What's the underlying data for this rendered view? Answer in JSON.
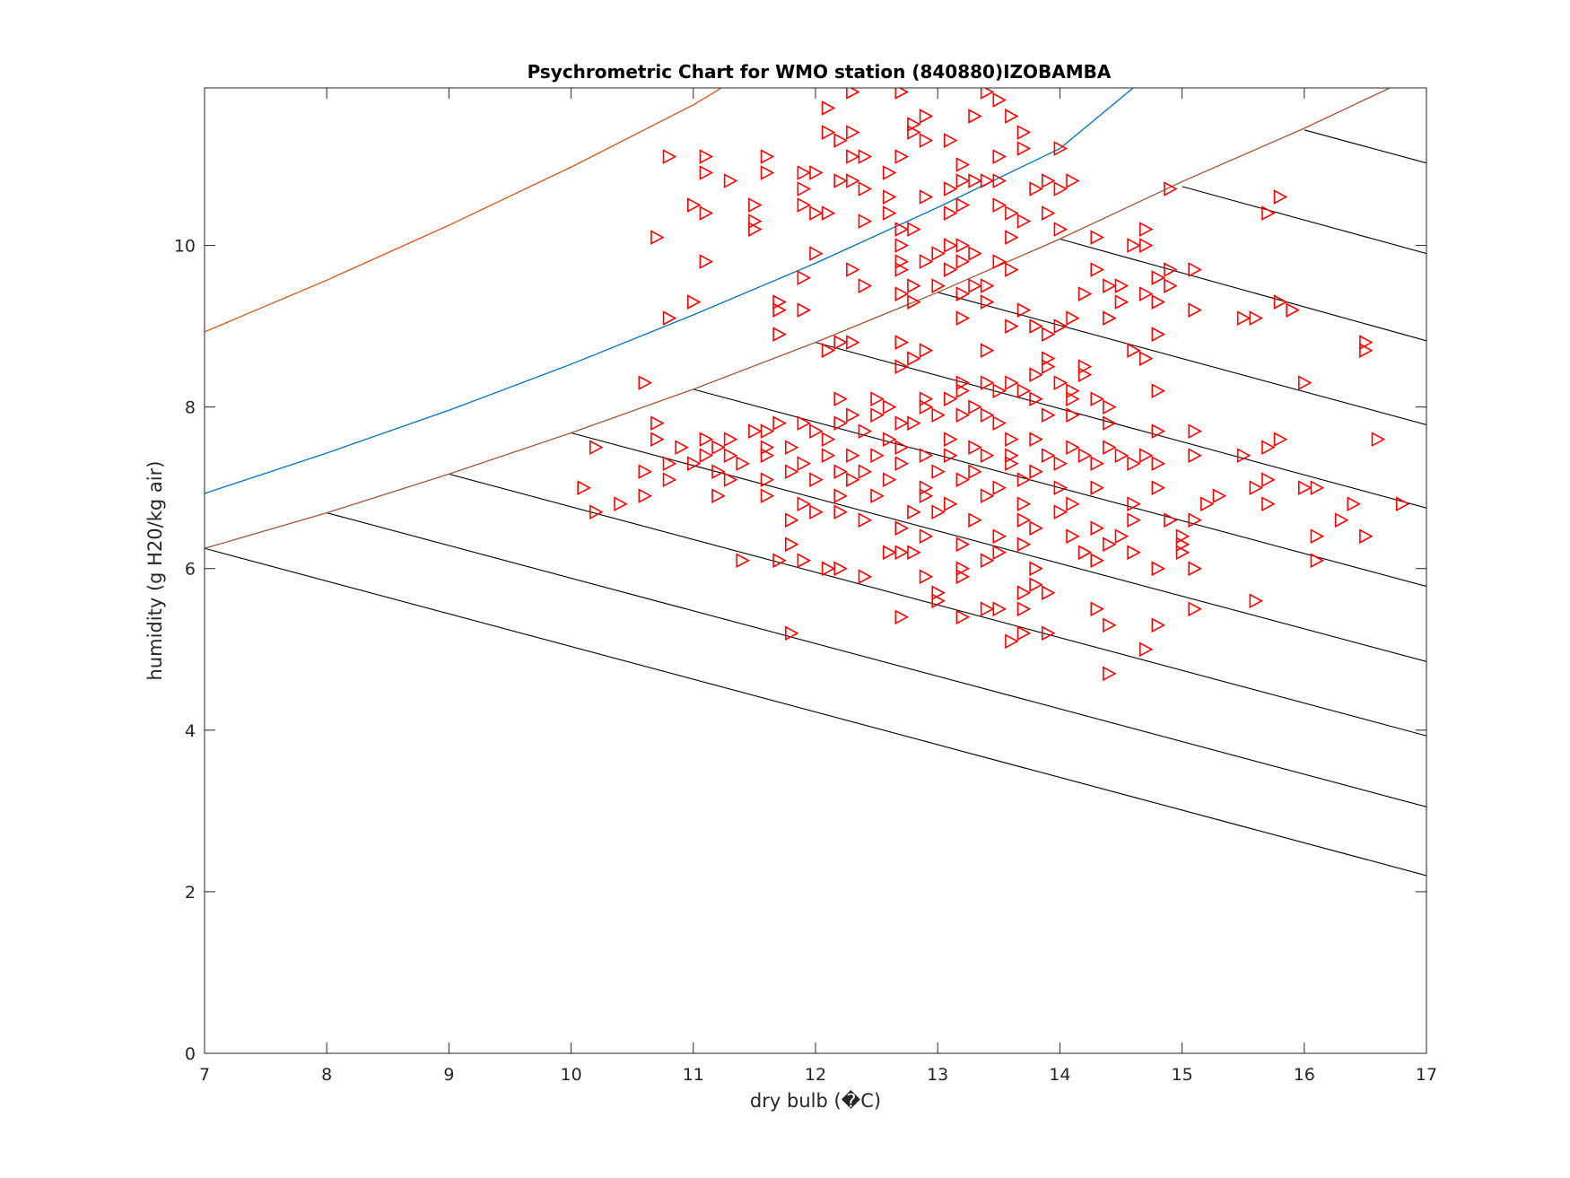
{
  "chart_data": {
    "type": "scatter",
    "title": "Psychrometric Chart for WMO station (840880)IZOBAMBA",
    "xlabel": "dry bulb (�C)",
    "ylabel": "humidity (g H20/kg air)",
    "xlim": [
      7,
      17
    ],
    "ylim": [
      0,
      11.95
    ],
    "x_ticks": [
      7,
      8,
      9,
      10,
      11,
      12,
      13,
      14,
      15,
      16,
      17
    ],
    "y_ticks": [
      0,
      2,
      4,
      6,
      8,
      10
    ],
    "grid": false,
    "legend": "none",
    "marker": "triangle-right",
    "marker_color": "#ff0000",
    "curves": [
      {
        "color": "#d95319",
        "points": [
          [
            7.0,
            8.93
          ],
          [
            8.0,
            9.57
          ],
          [
            9.0,
            10.25
          ],
          [
            10.0,
            10.97
          ],
          [
            11.0,
            11.74
          ],
          [
            11.23,
            11.95
          ]
        ]
      },
      {
        "color": "#0072bd",
        "points": [
          [
            7.0,
            6.93
          ],
          [
            8.0,
            7.43
          ],
          [
            9.0,
            7.96
          ],
          [
            10.0,
            8.53
          ],
          [
            11.0,
            9.14
          ],
          [
            12.0,
            9.78
          ],
          [
            13.0,
            10.47
          ],
          [
            14.0,
            11.2
          ],
          [
            14.6,
            11.95
          ]
        ]
      },
      {
        "color": "#a2553a",
        "points": [
          [
            7.0,
            6.25
          ],
          [
            8.0,
            6.69
          ],
          [
            9.0,
            7.17
          ],
          [
            10.0,
            7.68
          ],
          [
            11.0,
            8.22
          ],
          [
            12.0,
            8.8
          ],
          [
            13.0,
            9.42
          ],
          [
            14.0,
            10.08
          ],
          [
            15.0,
            10.79
          ],
          [
            16.0,
            11.45
          ],
          [
            16.7,
            11.95
          ]
        ]
      }
    ],
    "wet_bulb_lines": [
      {
        "color": "#000000",
        "points": [
          [
            7.0,
            6.25
          ],
          [
            17.0,
            2.2
          ]
        ]
      },
      {
        "color": "#000000",
        "points": [
          [
            8.0,
            6.69
          ],
          [
            17.0,
            3.05
          ]
        ]
      },
      {
        "color": "#000000",
        "points": [
          [
            9.0,
            7.17
          ],
          [
            17.0,
            3.93
          ]
        ]
      },
      {
        "color": "#000000",
        "points": [
          [
            10.0,
            7.68
          ],
          [
            17.0,
            4.85
          ]
        ]
      },
      {
        "color": "#000000",
        "points": [
          [
            11.0,
            8.22
          ],
          [
            17.0,
            5.78
          ]
        ]
      },
      {
        "color": "#000000",
        "points": [
          [
            12.0,
            8.8
          ],
          [
            17.0,
            6.75
          ]
        ]
      },
      {
        "color": "#000000",
        "points": [
          [
            13.0,
            9.42
          ],
          [
            17.0,
            7.78
          ]
        ]
      },
      {
        "color": "#000000",
        "points": [
          [
            14.0,
            10.08
          ],
          [
            17.0,
            8.82
          ]
        ]
      },
      {
        "color": "#000000",
        "points": [
          [
            15.0,
            10.73
          ],
          [
            17.0,
            9.9
          ]
        ]
      },
      {
        "color": "#000000",
        "points": [
          [
            16.0,
            11.43
          ],
          [
            17.0,
            11.02
          ]
        ]
      }
    ],
    "points": [
      [
        12.1,
        11.7
      ],
      [
        12.3,
        11.9
      ],
      [
        12.7,
        11.9
      ],
      [
        13.4,
        11.9
      ],
      [
        13.5,
        11.8
      ],
      [
        13.3,
        11.6
      ],
      [
        13.6,
        11.6
      ],
      [
        12.8,
        11.5
      ],
      [
        12.9,
        11.6
      ],
      [
        13.7,
        11.4
      ],
      [
        12.1,
        11.4
      ],
      [
        12.2,
        11.3
      ],
      [
        12.3,
        11.4
      ],
      [
        12.8,
        11.4
      ],
      [
        12.9,
        11.3
      ],
      [
        13.7,
        11.2
      ],
      [
        14.0,
        11.2
      ],
      [
        13.1,
        11.3
      ],
      [
        13.2,
        11.0
      ],
      [
        12.4,
        11.1
      ],
      [
        12.7,
        11.1
      ],
      [
        12.3,
        11.1
      ],
      [
        11.1,
        11.1
      ],
      [
        11.6,
        11.1
      ],
      [
        10.8,
        11.1
      ],
      [
        13.5,
        11.1
      ],
      [
        11.1,
        10.9
      ],
      [
        11.6,
        10.9
      ],
      [
        11.3,
        10.8
      ],
      [
        11.9,
        10.9
      ],
      [
        12.0,
        10.9
      ],
      [
        12.3,
        10.8
      ],
      [
        12.4,
        10.7
      ],
      [
        12.6,
        10.9
      ],
      [
        13.2,
        10.8
      ],
      [
        13.3,
        10.8
      ],
      [
        13.4,
        10.8
      ],
      [
        13.5,
        10.8
      ],
      [
        13.9,
        10.8
      ],
      [
        14.1,
        10.8
      ],
      [
        11.9,
        10.7
      ],
      [
        12.2,
        10.8
      ],
      [
        12.6,
        10.6
      ],
      [
        12.9,
        10.6
      ],
      [
        13.1,
        10.7
      ],
      [
        13.5,
        10.5
      ],
      [
        13.8,
        10.7
      ],
      [
        14.0,
        10.7
      ],
      [
        11.9,
        10.5
      ],
      [
        12.0,
        10.4
      ],
      [
        11.0,
        10.5
      ],
      [
        11.1,
        10.4
      ],
      [
        11.5,
        10.5
      ],
      [
        12.1,
        10.4
      ],
      [
        12.4,
        10.3
      ],
      [
        12.6,
        10.4
      ],
      [
        13.1,
        10.4
      ],
      [
        13.2,
        10.5
      ],
      [
        13.6,
        10.4
      ],
      [
        13.9,
        10.4
      ],
      [
        14.9,
        10.7
      ],
      [
        11.5,
        10.3
      ],
      [
        11.5,
        10.2
      ],
      [
        12.7,
        10.2
      ],
      [
        12.8,
        10.2
      ],
      [
        12.7,
        10.0
      ],
      [
        13.1,
        10.0
      ],
      [
        13.7,
        10.3
      ],
      [
        13.6,
        10.1
      ],
      [
        14.3,
        10.1
      ],
      [
        14.7,
        10.2
      ],
      [
        15.8,
        10.6
      ],
      [
        15.7,
        10.4
      ],
      [
        10.7,
        10.1
      ],
      [
        13.2,
        10.0
      ],
      [
        13.0,
        9.9
      ],
      [
        13.3,
        9.9
      ],
      [
        14.0,
        10.2
      ],
      [
        14.6,
        10.0
      ],
      [
        14.7,
        10.0
      ],
      [
        12.0,
        9.9
      ],
      [
        11.1,
        9.8
      ],
      [
        12.7,
        9.8
      ],
      [
        12.9,
        9.8
      ],
      [
        13.1,
        9.7
      ],
      [
        13.2,
        9.8
      ],
      [
        13.5,
        9.8
      ],
      [
        13.3,
        9.5
      ],
      [
        13.6,
        9.7
      ],
      [
        14.3,
        9.7
      ],
      [
        12.3,
        9.7
      ],
      [
        11.9,
        9.6
      ],
      [
        12.7,
        9.7
      ],
      [
        12.8,
        9.5
      ],
      [
        13.0,
        9.5
      ],
      [
        13.4,
        9.5
      ],
      [
        14.5,
        9.5
      ],
      [
        14.8,
        9.6
      ],
      [
        14.9,
        9.7
      ],
      [
        15.1,
        9.7
      ],
      [
        12.4,
        9.5
      ],
      [
        14.4,
        9.5
      ],
      [
        14.9,
        9.5
      ],
      [
        14.7,
        9.4
      ],
      [
        13.2,
        9.4
      ],
      [
        13.4,
        9.3
      ],
      [
        12.7,
        9.4
      ],
      [
        12.8,
        9.3
      ],
      [
        14.2,
        9.4
      ],
      [
        14.8,
        9.3
      ],
      [
        11.7,
        9.3
      ],
      [
        11.7,
        9.2
      ],
      [
        11.9,
        9.2
      ],
      [
        10.8,
        9.1
      ],
      [
        11.0,
        9.3
      ],
      [
        13.7,
        9.2
      ],
      [
        14.1,
        9.1
      ],
      [
        14.5,
        9.3
      ],
      [
        15.1,
        9.2
      ],
      [
        15.5,
        9.1
      ],
      [
        15.6,
        9.1
      ],
      [
        15.8,
        9.3
      ],
      [
        15.9,
        9.2
      ],
      [
        13.2,
        9.1
      ],
      [
        13.6,
        9.0
      ],
      [
        13.8,
        9.0
      ],
      [
        13.9,
        8.9
      ],
      [
        14.0,
        9.0
      ],
      [
        14.4,
        9.1
      ],
      [
        14.8,
        8.9
      ],
      [
        11.7,
        8.9
      ],
      [
        12.2,
        8.8
      ],
      [
        12.3,
        8.8
      ],
      [
        12.1,
        8.7
      ],
      [
        12.7,
        8.8
      ],
      [
        12.9,
        8.7
      ],
      [
        13.4,
        8.7
      ],
      [
        13.9,
        8.6
      ],
      [
        14.6,
        8.7
      ],
      [
        14.7,
        8.6
      ],
      [
        16.5,
        8.8
      ],
      [
        16.5,
        8.7
      ],
      [
        12.8,
        8.6
      ],
      [
        12.7,
        8.5
      ],
      [
        13.9,
        8.5
      ],
      [
        14.2,
        8.5
      ],
      [
        14.2,
        8.4
      ],
      [
        13.6,
        8.3
      ],
      [
        13.8,
        8.4
      ],
      [
        14.0,
        8.3
      ],
      [
        16.0,
        8.3
      ],
      [
        10.6,
        8.3
      ],
      [
        13.2,
        8.3
      ],
      [
        13.4,
        8.3
      ],
      [
        13.5,
        8.2
      ],
      [
        13.2,
        8.2
      ],
      [
        13.7,
        8.2
      ],
      [
        14.1,
        8.2
      ],
      [
        14.8,
        8.2
      ],
      [
        12.2,
        8.1
      ],
      [
        12.5,
        8.1
      ],
      [
        12.9,
        8.1
      ],
      [
        13.1,
        8.1
      ],
      [
        13.3,
        8.0
      ],
      [
        13.8,
        8.1
      ],
      [
        14.1,
        8.1
      ],
      [
        14.3,
        8.1
      ],
      [
        14.4,
        8.0
      ],
      [
        12.6,
        8.0
      ],
      [
        12.9,
        8.0
      ],
      [
        13.0,
        7.9
      ],
      [
        13.2,
        7.9
      ],
      [
        13.4,
        7.9
      ],
      [
        13.5,
        7.8
      ],
      [
        13.9,
        7.9
      ],
      [
        14.1,
        7.9
      ],
      [
        14.4,
        7.8
      ],
      [
        12.3,
        7.9
      ],
      [
        12.5,
        7.9
      ],
      [
        12.7,
        7.8
      ],
      [
        12.8,
        7.8
      ],
      [
        12.2,
        7.8
      ],
      [
        11.7,
        7.8
      ],
      [
        11.9,
        7.8
      ],
      [
        12.0,
        7.7
      ],
      [
        12.4,
        7.7
      ],
      [
        11.5,
        7.7
      ],
      [
        11.6,
        7.7
      ],
      [
        11.1,
        7.6
      ],
      [
        11.3,
        7.6
      ],
      [
        10.7,
        7.8
      ],
      [
        10.7,
        7.6
      ],
      [
        11.2,
        7.5
      ],
      [
        11.6,
        7.5
      ],
      [
        11.8,
        7.5
      ],
      [
        12.1,
        7.6
      ],
      [
        12.6,
        7.6
      ],
      [
        12.7,
        7.5
      ],
      [
        13.1,
        7.6
      ],
      [
        13.3,
        7.5
      ],
      [
        13.6,
        7.6
      ],
      [
        13.8,
        7.6
      ],
      [
        14.1,
        7.5
      ],
      [
        14.4,
        7.5
      ],
      [
        14.8,
        7.7
      ],
      [
        16.6,
        7.6
      ],
      [
        15.8,
        7.6
      ],
      [
        15.1,
        7.7
      ],
      [
        10.9,
        7.5
      ],
      [
        10.2,
        7.5
      ],
      [
        11.1,
        7.4
      ],
      [
        11.3,
        7.4
      ],
      [
        11.6,
        7.4
      ],
      [
        11.9,
        7.3
      ],
      [
        12.1,
        7.4
      ],
      [
        12.3,
        7.4
      ],
      [
        12.5,
        7.4
      ],
      [
        12.9,
        7.4
      ],
      [
        13.1,
        7.4
      ],
      [
        13.4,
        7.4
      ],
      [
        13.6,
        7.4
      ],
      [
        13.9,
        7.4
      ],
      [
        14.2,
        7.4
      ],
      [
        14.5,
        7.4
      ],
      [
        14.7,
        7.4
      ],
      [
        15.1,
        7.4
      ],
      [
        15.5,
        7.4
      ],
      [
        15.7,
        7.5
      ],
      [
        10.8,
        7.3
      ],
      [
        11.0,
        7.3
      ],
      [
        11.2,
        7.2
      ],
      [
        11.4,
        7.3
      ],
      [
        11.8,
        7.2
      ],
      [
        12.2,
        7.2
      ],
      [
        12.4,
        7.2
      ],
      [
        12.7,
        7.3
      ],
      [
        13.0,
        7.2
      ],
      [
        13.3,
        7.2
      ],
      [
        13.6,
        7.3
      ],
      [
        13.8,
        7.2
      ],
      [
        14.0,
        7.3
      ],
      [
        14.3,
        7.3
      ],
      [
        14.6,
        7.3
      ],
      [
        14.8,
        7.3
      ],
      [
        10.6,
        7.2
      ],
      [
        10.8,
        7.1
      ],
      [
        11.3,
        7.1
      ],
      [
        11.6,
        7.1
      ],
      [
        12.0,
        7.1
      ],
      [
        12.3,
        7.1
      ],
      [
        12.6,
        7.1
      ],
      [
        12.9,
        7.0
      ],
      [
        13.2,
        7.1
      ],
      [
        13.5,
        7.0
      ],
      [
        13.7,
        7.1
      ],
      [
        14.0,
        7.0
      ],
      [
        14.3,
        7.0
      ],
      [
        14.8,
        7.0
      ],
      [
        15.6,
        7.0
      ],
      [
        15.7,
        7.1
      ],
      [
        16.0,
        7.0
      ],
      [
        16.1,
        7.0
      ],
      [
        10.1,
        7.0
      ],
      [
        10.6,
        6.9
      ],
      [
        11.2,
        6.9
      ],
      [
        11.6,
        6.9
      ],
      [
        11.9,
        6.8
      ],
      [
        12.2,
        6.9
      ],
      [
        12.5,
        6.9
      ],
      [
        12.9,
        6.9
      ],
      [
        13.1,
        6.8
      ],
      [
        13.4,
        6.9
      ],
      [
        13.7,
        6.8
      ],
      [
        14.1,
        6.8
      ],
      [
        14.6,
        6.8
      ],
      [
        15.2,
        6.8
      ],
      [
        15.3,
        6.9
      ],
      [
        15.7,
        6.8
      ],
      [
        16.4,
        6.8
      ],
      [
        16.8,
        6.8
      ],
      [
        10.4,
        6.8
      ],
      [
        10.2,
        6.7
      ],
      [
        12.0,
        6.7
      ],
      [
        12.2,
        6.7
      ],
      [
        12.8,
        6.7
      ],
      [
        13.0,
        6.7
      ],
      [
        13.3,
        6.6
      ],
      [
        13.7,
        6.6
      ],
      [
        14.0,
        6.7
      ],
      [
        14.6,
        6.6
      ],
      [
        14.9,
        6.6
      ],
      [
        15.1,
        6.6
      ],
      [
        16.3,
        6.6
      ],
      [
        11.8,
        6.6
      ],
      [
        12.4,
        6.6
      ],
      [
        12.7,
        6.5
      ],
      [
        13.5,
        6.4
      ],
      [
        13.8,
        6.5
      ],
      [
        14.1,
        6.4
      ],
      [
        14.3,
        6.5
      ],
      [
        15.0,
        6.4
      ],
      [
        16.1,
        6.4
      ],
      [
        16.5,
        6.4
      ],
      [
        12.9,
        6.4
      ],
      [
        13.2,
        6.3
      ],
      [
        13.7,
        6.3
      ],
      [
        14.4,
        6.3
      ],
      [
        14.5,
        6.4
      ],
      [
        15.0,
        6.3
      ],
      [
        11.8,
        6.3
      ],
      [
        12.6,
        6.2
      ],
      [
        12.8,
        6.2
      ],
      [
        13.5,
        6.2
      ],
      [
        14.2,
        6.2
      ],
      [
        14.3,
        6.1
      ],
      [
        14.6,
        6.2
      ],
      [
        15.0,
        6.2
      ],
      [
        16.1,
        6.1
      ],
      [
        11.7,
        6.1
      ],
      [
        11.9,
        6.1
      ],
      [
        12.1,
        6.0
      ],
      [
        12.2,
        6.0
      ],
      [
        12.7,
        6.2
      ],
      [
        13.2,
        6.0
      ],
      [
        13.4,
        6.1
      ],
      [
        13.8,
        6.0
      ],
      [
        14.8,
        6.0
      ],
      [
        15.1,
        6.0
      ],
      [
        11.4,
        6.1
      ],
      [
        12.4,
        5.9
      ],
      [
        12.9,
        5.9
      ],
      [
        13.2,
        5.9
      ],
      [
        13.8,
        5.8
      ],
      [
        13.0,
        5.7
      ],
      [
        13.7,
        5.7
      ],
      [
        13.9,
        5.7
      ],
      [
        13.0,
        5.6
      ],
      [
        13.5,
        5.5
      ],
      [
        13.7,
        5.5
      ],
      [
        14.3,
        5.5
      ],
      [
        15.1,
        5.5
      ],
      [
        15.6,
        5.6
      ],
      [
        12.7,
        5.4
      ],
      [
        13.2,
        5.4
      ],
      [
        13.4,
        5.5
      ],
      [
        14.4,
        5.3
      ],
      [
        14.8,
        5.3
      ],
      [
        13.6,
        5.1
      ],
      [
        13.7,
        5.2
      ],
      [
        13.9,
        5.2
      ],
      [
        11.8,
        5.2
      ],
      [
        14.7,
        5.0
      ],
      [
        14.4,
        4.7
      ]
    ]
  }
}
